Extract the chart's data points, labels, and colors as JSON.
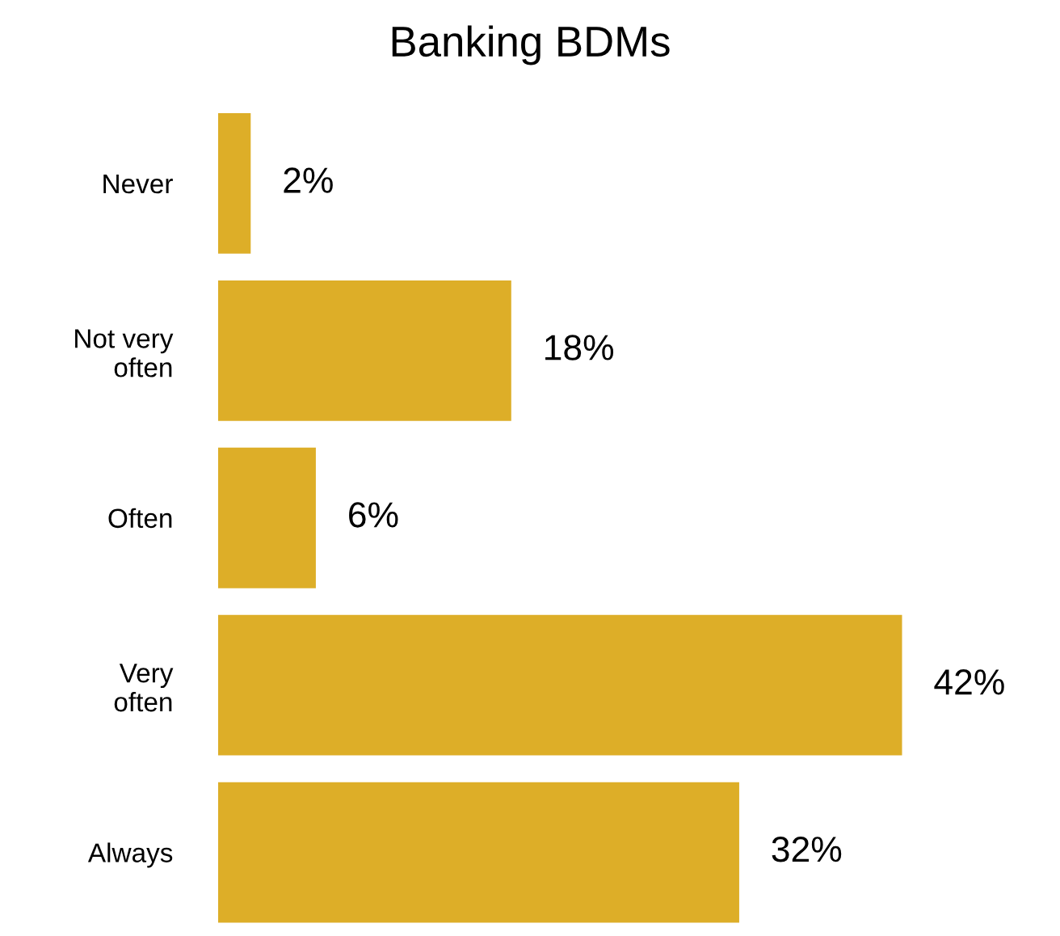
{
  "chart_data": {
    "type": "bar",
    "orientation": "horizontal",
    "title": "Banking BDMs",
    "categories": [
      "Never",
      "Not very often",
      "Often",
      "Very often",
      "Always"
    ],
    "values": [
      2,
      18,
      6,
      42,
      32
    ],
    "value_labels": [
      "2%",
      "18%",
      "6%",
      "42%",
      "32%"
    ],
    "color": "#ddae28",
    "grid": false,
    "legend": false
  }
}
